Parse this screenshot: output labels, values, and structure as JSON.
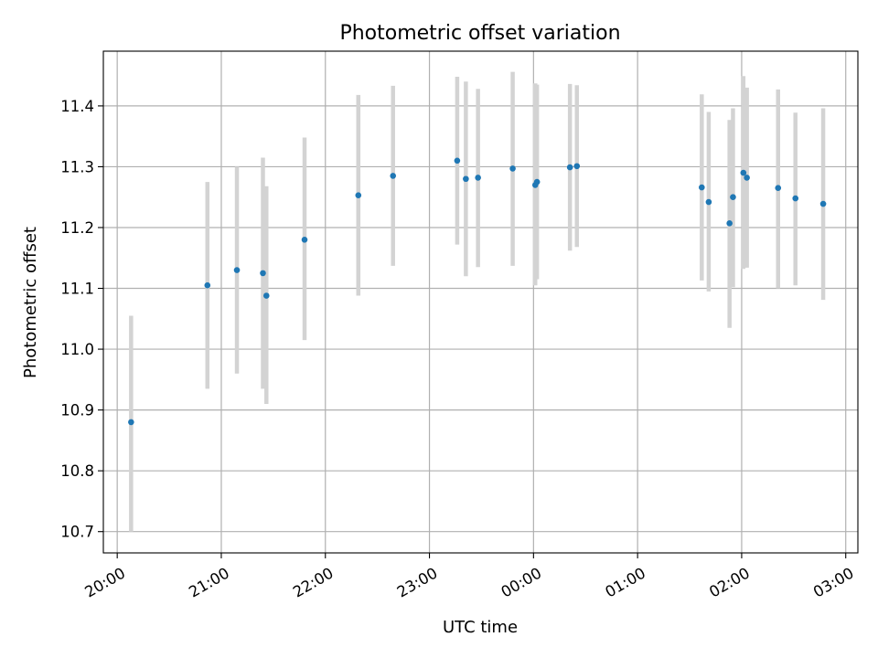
{
  "chart_data": {
    "type": "scatter",
    "title": "Photometric offset variation",
    "xlabel": "UTC time",
    "ylabel": "Photometric offset",
    "x_axis_type": "time",
    "x_start": "20:00",
    "xlim": [
      "19:52",
      "03:07"
    ],
    "ylim": [
      10.665,
      11.49
    ],
    "x_ticks": [
      "20:00",
      "21:00",
      "22:00",
      "23:00",
      "00:00",
      "01:00",
      "02:00",
      "03:00"
    ],
    "y_ticks": [
      10.7,
      10.8,
      10.9,
      11.0,
      11.1,
      11.2,
      11.3,
      11.4
    ],
    "y_tick_labels": [
      "10.7",
      "10.8",
      "10.9",
      "11.0",
      "11.1",
      "11.2",
      "11.3",
      "11.4"
    ],
    "grid": true,
    "point_color": "#1f77b4",
    "errorbar_color": "#d3d3d3",
    "points": [
      {
        "t": "20:08",
        "y": 10.88,
        "lo": 10.7,
        "hi": 11.055
      },
      {
        "t": "20:52",
        "y": 11.105,
        "lo": 10.935,
        "hi": 11.275
      },
      {
        "t": "21:09",
        "y": 11.13,
        "lo": 10.96,
        "hi": 11.3
      },
      {
        "t": "21:24",
        "y": 11.125,
        "lo": 10.935,
        "hi": 11.315
      },
      {
        "t": "21:26",
        "y": 11.088,
        "lo": 10.91,
        "hi": 11.268
      },
      {
        "t": "21:48",
        "y": 11.18,
        "lo": 11.015,
        "hi": 11.348
      },
      {
        "t": "22:19",
        "y": 11.253,
        "lo": 11.088,
        "hi": 11.418
      },
      {
        "t": "22:39",
        "y": 11.285,
        "lo": 11.137,
        "hi": 11.433
      },
      {
        "t": "23:16",
        "y": 11.31,
        "lo": 11.172,
        "hi": 11.448
      },
      {
        "t": "23:21",
        "y": 11.28,
        "lo": 11.12,
        "hi": 11.44
      },
      {
        "t": "23:28",
        "y": 11.282,
        "lo": 11.135,
        "hi": 11.428
      },
      {
        "t": "23:48",
        "y": 11.297,
        "lo": 11.137,
        "hi": 11.456
      },
      {
        "t": "00:01",
        "y": 11.27,
        "lo": 11.105,
        "hi": 11.437
      },
      {
        "t": "00:02",
        "y": 11.275,
        "lo": 11.115,
        "hi": 11.435
      },
      {
        "t": "00:21",
        "y": 11.299,
        "lo": 11.162,
        "hi": 11.436
      },
      {
        "t": "00:25",
        "y": 11.301,
        "lo": 11.168,
        "hi": 11.434
      },
      {
        "t": "01:37",
        "y": 11.266,
        "lo": 11.113,
        "hi": 11.419
      },
      {
        "t": "01:41",
        "y": 11.242,
        "lo": 11.095,
        "hi": 11.39
      },
      {
        "t": "01:53",
        "y": 11.207,
        "lo": 11.035,
        "hi": 11.377
      },
      {
        "t": "01:55",
        "y": 11.25,
        "lo": 11.102,
        "hi": 11.396
      },
      {
        "t": "02:01",
        "y": 11.29,
        "lo": 11.132,
        "hi": 11.449
      },
      {
        "t": "02:03",
        "y": 11.282,
        "lo": 11.134,
        "hi": 11.43
      },
      {
        "t": "02:21",
        "y": 11.265,
        "lo": 11.1,
        "hi": 11.427
      },
      {
        "t": "02:31",
        "y": 11.248,
        "lo": 11.105,
        "hi": 11.389
      },
      {
        "t": "02:47",
        "y": 11.239,
        "lo": 11.081,
        "hi": 11.396
      }
    ]
  }
}
